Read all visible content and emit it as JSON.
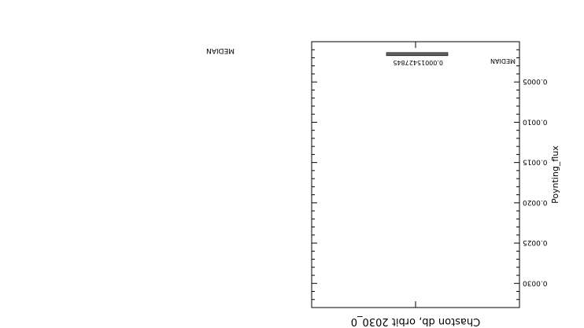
{
  "chart_data": {
    "type": "bar",
    "orientation": "horizontal",
    "rotated_180": true,
    "title": "Chaston db, orbit 2030_0",
    "ylabel": "Poynting_flux",
    "categories": [
      "MEDIAN"
    ],
    "values": [
      0.00015427845
    ],
    "value_labels": [
      "0.00015427845"
    ],
    "y_range": [
      0,
      0.0033
    ],
    "y_ticks": [
      0.0005,
      0.001,
      0.0015,
      0.002,
      0.0025,
      0.003
    ],
    "y_tick_labels": [
      "0.0005",
      "0.0010",
      "0.0015",
      "0.0020",
      "0.0025",
      "0.0030"
    ],
    "legend": {
      "entries": [
        "MEDIAN"
      ],
      "placement": "outside-left"
    },
    "colors": {
      "bar": "#606060",
      "frame": "#000000",
      "background": "#ffffff"
    },
    "grid": false
  }
}
